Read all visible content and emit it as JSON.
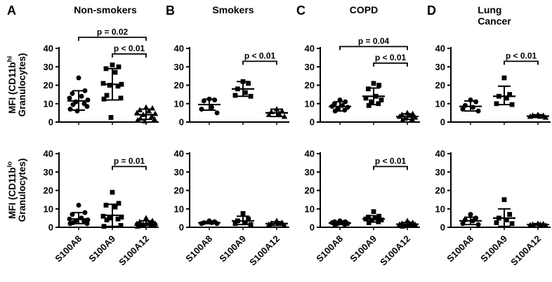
{
  "figure": {
    "background": "#ffffff",
    "ink": "#000000"
  },
  "rows": [
    {
      "ylabel_prefix": "MFI (CD11b",
      "ylabel_sup": "hi",
      "ylabel_line2": "Granulocytes)"
    },
    {
      "ylabel_prefix": "MFI (CD11b",
      "ylabel_sup": "lo",
      "ylabel_line2": "Granulocytes)"
    }
  ],
  "panels": [
    {
      "letter": "A",
      "title_line1": "Non-smokers",
      "title_line2": ""
    },
    {
      "letter": "B",
      "title_line1": "Smokers",
      "title_line2": ""
    },
    {
      "letter": "C",
      "title_line1": "COPD",
      "title_line2": ""
    },
    {
      "letter": "D",
      "title_line1": "Lung",
      "title_line2": "Cancer"
    }
  ],
  "categories": [
    "S100A8",
    "S100A9",
    "S100A12"
  ],
  "chart_data": [
    {
      "id": "A-hi",
      "panel": "A",
      "row": "hi",
      "type": "scatter",
      "categories": [
        "S100A8",
        "S100A9",
        "S100A12"
      ],
      "ylim": [
        0,
        40
      ],
      "yticks": [
        0,
        10,
        20,
        30,
        40
      ],
      "show_xlabels": false,
      "groups": [
        {
          "category": "S100A8",
          "marker": "circle",
          "values": [
            24,
            17,
            15.5,
            14,
            13,
            12,
            11,
            10,
            9.5,
            8.5,
            7,
            6
          ],
          "mean": 11.5,
          "err_lo": 6.5,
          "err_hi": 17
        },
        {
          "category": "S100A9",
          "marker": "square",
          "values": [
            31,
            30,
            29,
            27,
            21,
            20.5,
            20,
            19.5,
            14.5,
            13,
            12.5,
            2.5
          ],
          "mean": 20.5,
          "err_lo": 12,
          "err_hi": 29
        },
        {
          "category": "S100A12",
          "marker": "triangle",
          "values": [
            8,
            7.5,
            6.5,
            6,
            5,
            4.5,
            4,
            3,
            2,
            1.5,
            1,
            0.5
          ],
          "mean": 4,
          "err_lo": 1.5,
          "err_hi": 7
        }
      ],
      "brackets": [
        {
          "from": 0,
          "to": 2,
          "label": "p = 0.02",
          "y": 46
        },
        {
          "from": 1,
          "to": 2,
          "label": "p < 0.01",
          "y": 37
        }
      ]
    },
    {
      "id": "B-hi",
      "panel": "B",
      "row": "hi",
      "type": "scatter",
      "categories": [
        "S100A8",
        "S100A9",
        "S100A12"
      ],
      "ylim": [
        0,
        40
      ],
      "yticks": [
        0,
        10,
        20,
        30,
        40
      ],
      "show_xlabels": false,
      "groups": [
        {
          "category": "S100A8",
          "marker": "circle",
          "values": [
            12.5,
            12,
            11.5,
            8,
            7,
            5
          ],
          "mean": 9.5,
          "err_lo": 6.5,
          "err_hi": 12.5
        },
        {
          "category": "S100A9",
          "marker": "square",
          "values": [
            22,
            21,
            18,
            16,
            14.5,
            14
          ],
          "mean": 18,
          "err_lo": 14,
          "err_hi": 22
        },
        {
          "category": "S100A12",
          "marker": "triangle",
          "values": [
            7,
            6,
            5.5,
            4.5,
            4,
            3
          ],
          "mean": 5,
          "err_lo": 3,
          "err_hi": 7
        }
      ],
      "brackets": [
        {
          "from": 1,
          "to": 2,
          "label": "p < 0.01",
          "y": 33
        }
      ]
    },
    {
      "id": "C-hi",
      "panel": "C",
      "row": "hi",
      "type": "scatter",
      "categories": [
        "S100A8",
        "S100A9",
        "S100A12"
      ],
      "ylim": [
        0,
        40
      ],
      "yticks": [
        0,
        10,
        20,
        30,
        40
      ],
      "show_xlabels": false,
      "groups": [
        {
          "category": "S100A8",
          "marker": "circle",
          "values": [
            12,
            11,
            10,
            9,
            8.5,
            8,
            7,
            6.5,
            6
          ],
          "mean": 8.5,
          "err_lo": 6,
          "err_hi": 11
        },
        {
          "category": "S100A9",
          "marker": "square",
          "values": [
            21,
            20,
            18,
            14,
            13,
            12,
            11,
            10,
            9
          ],
          "mean": 14,
          "err_lo": 9.5,
          "err_hi": 18.5
        },
        {
          "category": "S100A12",
          "marker": "triangle",
          "values": [
            5,
            4.5,
            4,
            3.5,
            3,
            2.5,
            2,
            1.5,
            1
          ],
          "mean": 3,
          "err_lo": 1.5,
          "err_hi": 4.5
        }
      ],
      "brackets": [
        {
          "from": 0,
          "to": 2,
          "label": "p = 0.04",
          "y": 41
        },
        {
          "from": 1,
          "to": 2,
          "label": "p < 0.01",
          "y": 32
        }
      ]
    },
    {
      "id": "D-hi",
      "panel": "D",
      "row": "hi",
      "type": "scatter",
      "categories": [
        "S100A8",
        "S100A9",
        "S100A12"
      ],
      "ylim": [
        0,
        40
      ],
      "yticks": [
        0,
        10,
        20,
        30,
        40
      ],
      "show_xlabels": false,
      "groups": [
        {
          "category": "S100A8",
          "marker": "circle",
          "values": [
            12,
            11,
            9,
            8,
            7,
            6
          ],
          "mean": 8.5,
          "err_lo": 6,
          "err_hi": 11.5
        },
        {
          "category": "S100A9",
          "marker": "square",
          "values": [
            24,
            15,
            14,
            13,
            10,
            9.5
          ],
          "mean": 14,
          "err_lo": 9.5,
          "err_hi": 19.5
        },
        {
          "category": "S100A12",
          "marker": "triangle",
          "values": [
            4,
            3.5,
            3.5,
            3,
            3,
            2.5
          ],
          "mean": 3.2,
          "err_lo": 2.5,
          "err_hi": 4
        }
      ],
      "brackets": [
        {
          "from": 1,
          "to": 2,
          "label": "p < 0.01",
          "y": 33
        }
      ]
    },
    {
      "id": "A-lo",
      "panel": "A",
      "row": "lo",
      "type": "scatter",
      "categories": [
        "S100A8",
        "S100A9",
        "S100A12"
      ],
      "ylim": [
        0,
        40
      ],
      "yticks": [
        0,
        10,
        20,
        30,
        40
      ],
      "show_xlabels": true,
      "groups": [
        {
          "category": "S100A8",
          "marker": "circle",
          "values": [
            12,
            8,
            7,
            5,
            4.5,
            4,
            3.5,
            3,
            2.5,
            2,
            2
          ],
          "mean": 4.5,
          "err_lo": 2,
          "err_hi": 8
        },
        {
          "category": "S100A9",
          "marker": "square",
          "values": [
            19,
            13,
            12,
            11,
            6,
            5.5,
            5,
            4.5,
            4,
            1,
            0.5
          ],
          "mean": 6.5,
          "err_lo": 0.5,
          "err_hi": 12.5
        },
        {
          "category": "S100A12",
          "marker": "triangle",
          "values": [
            5,
            3.5,
            3,
            2.5,
            2,
            2,
            1.5,
            1.5,
            1,
            1,
            0.5
          ],
          "mean": 2,
          "err_lo": 1,
          "err_hi": 3.5
        }
      ],
      "brackets": [
        {
          "from": 1,
          "to": 2,
          "label": "p = 0.01",
          "y": 33
        }
      ]
    },
    {
      "id": "B-lo",
      "panel": "B",
      "row": "lo",
      "type": "scatter",
      "categories": [
        "S100A8",
        "S100A9",
        "S100A12"
      ],
      "ylim": [
        0,
        40
      ],
      "yticks": [
        0,
        10,
        20,
        30,
        40
      ],
      "show_xlabels": true,
      "groups": [
        {
          "category": "S100A8",
          "marker": "circle",
          "values": [
            3.5,
            3,
            2.5,
            2.5,
            2,
            2
          ],
          "mean": 2.5,
          "err_lo": 2,
          "err_hi": 3.2
        },
        {
          "category": "S100A9",
          "marker": "square",
          "values": [
            7.5,
            4.5,
            3.5,
            2.5,
            2,
            1.5
          ],
          "mean": 3.5,
          "err_lo": 1.5,
          "err_hi": 6
        },
        {
          "category": "S100A12",
          "marker": "triangle",
          "values": [
            3.5,
            2.5,
            2,
            2,
            1.5,
            1
          ],
          "mean": 2,
          "err_lo": 1,
          "err_hi": 3
        }
      ],
      "brackets": []
    },
    {
      "id": "C-lo",
      "panel": "C",
      "row": "lo",
      "type": "scatter",
      "categories": [
        "S100A8",
        "S100A9",
        "S100A12"
      ],
      "ylim": [
        0,
        40
      ],
      "yticks": [
        0,
        10,
        20,
        30,
        40
      ],
      "show_xlabels": true,
      "groups": [
        {
          "category": "S100A8",
          "marker": "circle",
          "values": [
            3.5,
            3,
            3,
            2.5,
            2.5,
            2,
            2,
            1.5,
            1
          ],
          "mean": 2.3,
          "err_lo": 1.5,
          "err_hi": 3.2
        },
        {
          "category": "S100A9",
          "marker": "square",
          "values": [
            8.5,
            6,
            5.5,
            5,
            4.5,
            4,
            4,
            3,
            2.5
          ],
          "mean": 4.5,
          "err_lo": 2.8,
          "err_hi": 6.3
        },
        {
          "category": "S100A12",
          "marker": "triangle",
          "values": [
            3.5,
            2.5,
            2,
            2,
            1.5,
            1.5,
            1,
            1,
            0.5
          ],
          "mean": 1.7,
          "err_lo": 0.8,
          "err_hi": 2.6
        }
      ],
      "brackets": [
        {
          "from": 1,
          "to": 2,
          "label": "p < 0.01",
          "y": 33
        }
      ]
    },
    {
      "id": "D-lo",
      "panel": "D",
      "row": "lo",
      "type": "scatter",
      "categories": [
        "S100A8",
        "S100A9",
        "S100A12"
      ],
      "ylim": [
        0,
        40
      ],
      "yticks": [
        0,
        10,
        20,
        30,
        40
      ],
      "show_xlabels": true,
      "groups": [
        {
          "category": "S100A8",
          "marker": "circle",
          "values": [
            7,
            5,
            4,
            3.5,
            2,
            1.5
          ],
          "mean": 3.5,
          "err_lo": 1.5,
          "err_hi": 5.5
        },
        {
          "category": "S100A9",
          "marker": "square",
          "values": [
            15,
            7,
            5,
            4,
            2.5,
            2
          ],
          "mean": 5,
          "err_lo": 0.5,
          "err_hi": 10
        },
        {
          "category": "S100A12",
          "marker": "triangle",
          "values": [
            2,
            1.8,
            1.5,
            1.5,
            1.2,
            1
          ],
          "mean": 1.5,
          "err_lo": 1,
          "err_hi": 2
        }
      ],
      "brackets": []
    }
  ]
}
